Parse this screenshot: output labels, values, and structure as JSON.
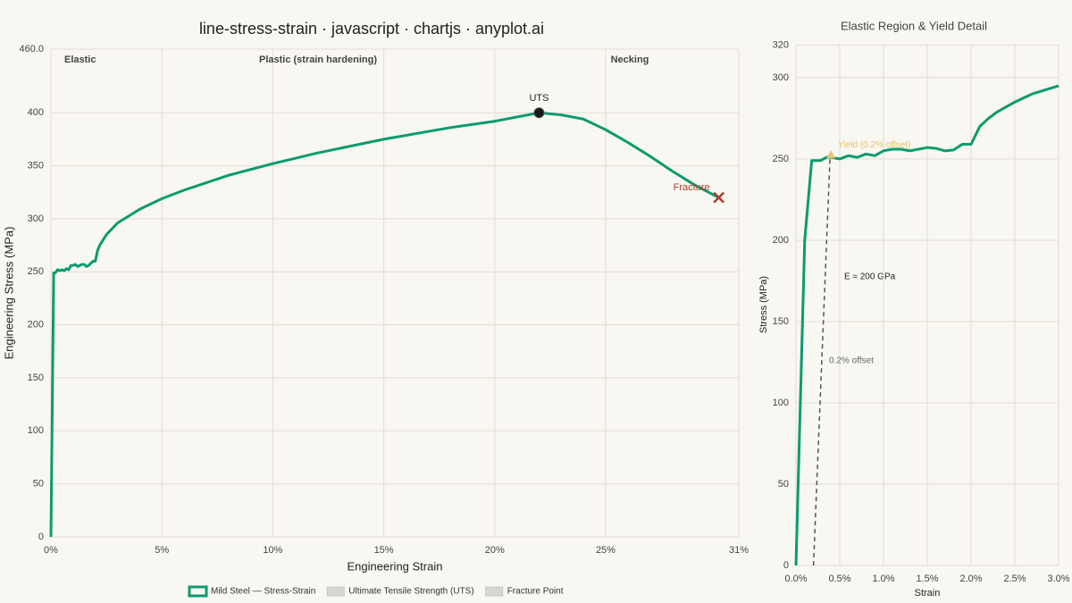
{
  "chart_data": [
    {
      "type": "line",
      "title": "line-stress-strain · javascript · chartjs · anyplot.ai",
      "x_label": "Engineering Strain",
      "y_label": "Engineering Stress (MPa)",
      "xlim": [
        0,
        0.31
      ],
      "xticks": [
        {
          "value": 0,
          "label": "0%"
        },
        {
          "value": 0.05,
          "label": "5%"
        },
        {
          "value": 0.1,
          "label": "10%"
        },
        {
          "value": 0.15,
          "label": "15%"
        },
        {
          "value": 0.2,
          "label": "20%"
        },
        {
          "value": 0.25,
          "label": "25%"
        },
        {
          "value": 0.31,
          "label": "31%"
        }
      ],
      "ylim": [
        0,
        460
      ],
      "yticks": [
        0,
        50,
        100,
        150,
        200,
        250,
        300,
        350,
        400,
        {
          "value": 460,
          "label": "460.0"
        }
      ],
      "grid": true,
      "legend": "bottom",
      "regions": [
        "Elastic",
        "Plastic (strain hardening)",
        "Necking"
      ],
      "series": [
        {
          "name": "Mild Steel — Stress-Strain",
          "color": "#0a9b6f",
          "x": [
            0,
            0.001,
            0.00125,
            0.002,
            0.003,
            0.004,
            0.005,
            0.006,
            0.007,
            0.008,
            0.009,
            0.01,
            0.011,
            0.012,
            0.013,
            0.014,
            0.015,
            0.016,
            0.017,
            0.018,
            0.019,
            0.02,
            0.021,
            0.022,
            0.025,
            0.03,
            0.04,
            0.05,
            0.06,
            0.08,
            0.1,
            0.12,
            0.15,
            0.18,
            0.2,
            0.22,
            0.23,
            0.24,
            0.25,
            0.26,
            0.27,
            0.28,
            0.29,
            0.301
          ],
          "values": [
            0,
            200,
            249,
            249,
            252,
            251,
            252,
            251,
            253,
            252,
            256,
            256,
            257,
            255,
            256,
            257,
            257,
            255,
            256,
            258,
            260,
            260,
            270,
            275,
            285,
            296,
            309,
            319,
            327,
            341,
            352,
            362,
            375,
            386,
            392,
            400,
            398,
            394,
            384,
            372,
            359,
            345,
            332,
            320
          ]
        },
        {
          "name": "Ultimate Tensile Strength (UTS)",
          "marker": "circle",
          "color": "#1a1a1a",
          "legend_color": "#d6d6d3",
          "label": "UTS",
          "label_color": "#222222",
          "x": [
            0.22
          ],
          "values": [
            400
          ]
        },
        {
          "name": "Fracture Point",
          "marker": "x",
          "color": "#b03a2e",
          "legend_color": "#d6d6d3",
          "label": "Fracture",
          "label_color": "#b03a2e",
          "x": [
            0.301
          ],
          "values": [
            320
          ]
        }
      ]
    },
    {
      "type": "line",
      "title": "Elastic Region & Yield Detail",
      "x_label": "Strain",
      "y_label": "Stress (MPa)",
      "xlim": [
        0,
        0.03
      ],
      "xticks": [
        {
          "value": 0,
          "label": "0.0%"
        },
        {
          "value": 0.005,
          "label": "0.5%"
        },
        {
          "value": 0.01,
          "label": "1.0%"
        },
        {
          "value": 0.015,
          "label": "1.5%"
        },
        {
          "value": 0.02,
          "label": "2.0%"
        },
        {
          "value": 0.025,
          "label": "2.5%"
        },
        {
          "value": 0.03,
          "label": "3.0%"
        }
      ],
      "ylim": [
        0,
        320
      ],
      "yticks": [
        0,
        50,
        100,
        150,
        200,
        250,
        300,
        320
      ],
      "grid": true,
      "modulus_label": "E ≈ 200 GPa",
      "offset_line": {
        "label": "0.2% offset",
        "color": "#555555",
        "x": [
          0.002,
          0.0039
        ],
        "values": [
          0,
          252
        ]
      },
      "yield": {
        "label": "Yield (0.2% offset)",
        "color": "#e3c56f",
        "x": 0.004,
        "y": 252
      },
      "series": [
        {
          "name": "Mild Steel — Stress-Strain",
          "color": "#0a9b6f",
          "x": [
            0,
            0.001,
            0.0018,
            0.0028,
            0.0035,
            0.004,
            0.005,
            0.006,
            0.007,
            0.008,
            0.009,
            0.01,
            0.011,
            0.012,
            0.013,
            0.014,
            0.015,
            0.016,
            0.017,
            0.018,
            0.019,
            0.02,
            0.021,
            0.022,
            0.023,
            0.025,
            0.027,
            0.03
          ],
          "values": [
            0,
            200,
            249,
            249,
            251,
            251,
            250,
            252,
            251,
            253,
            252,
            255,
            256,
            256,
            255,
            256,
            257,
            256.5,
            255,
            255.5,
            259,
            259,
            270,
            275,
            279,
            285,
            290,
            295
          ]
        }
      ]
    }
  ]
}
